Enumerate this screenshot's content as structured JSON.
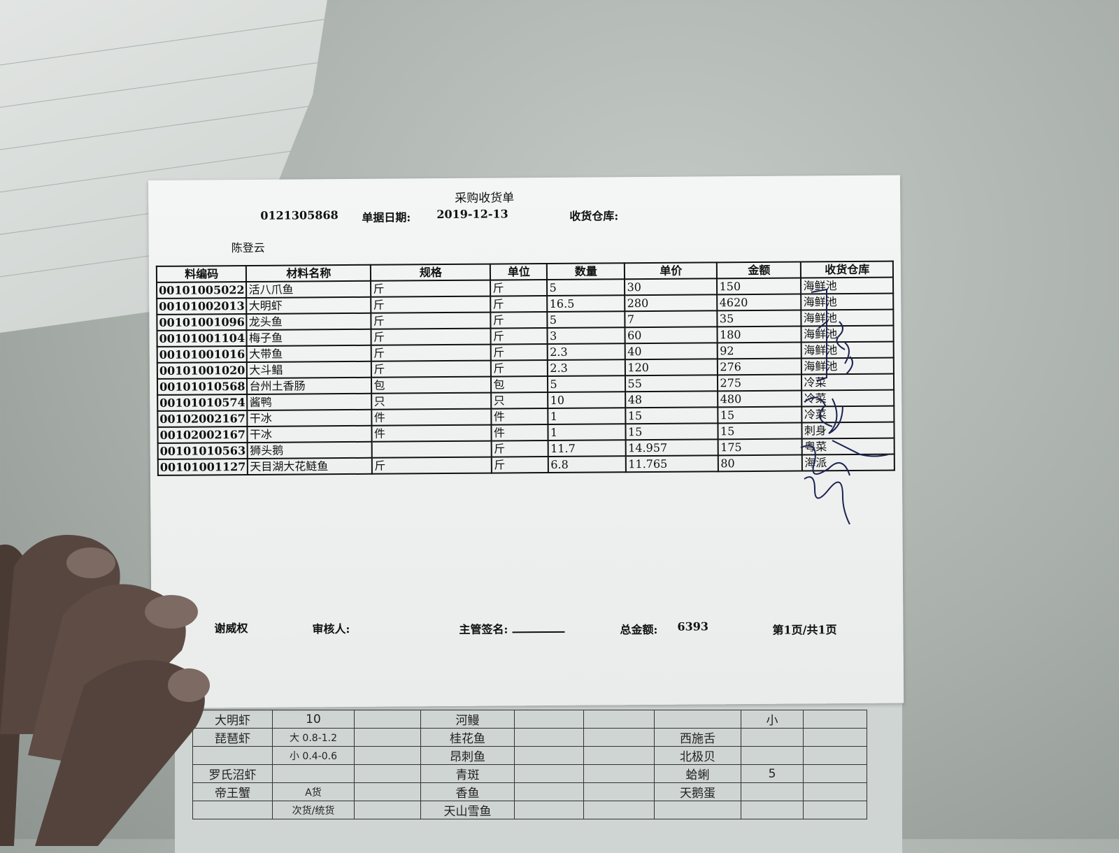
{
  "receipt": {
    "title": "采购收货单",
    "doc_no_partial": "0121305868",
    "date_label": "单据日期:",
    "date_value": "2019-12-13",
    "warehouse_label": "收货仓库:",
    "warehouse_value": "",
    "person": "陈登云",
    "columns": [
      "料编码",
      "材料名称",
      "规格",
      "单位",
      "数量",
      "单价",
      "金额",
      "收货仓库"
    ],
    "rows": [
      [
        "00101005022",
        "活八爪鱼",
        "斤",
        "斤",
        "5",
        "30",
        "150",
        "海鲜池"
      ],
      [
        "00101002013",
        "大明虾",
        "斤",
        "斤",
        "16.5",
        "280",
        "4620",
        "海鲜池"
      ],
      [
        "00101001096",
        "龙头鱼",
        "斤",
        "斤",
        "5",
        "7",
        "35",
        "海鲜池"
      ],
      [
        "00101001104",
        "梅子鱼",
        "斤",
        "斤",
        "3",
        "60",
        "180",
        "海鲜池"
      ],
      [
        "00101001016",
        "大带鱼",
        "斤",
        "斤",
        "2.3",
        "40",
        "92",
        "海鲜池"
      ],
      [
        "00101001020",
        "大斗鲳",
        "斤",
        "斤",
        "2.3",
        "120",
        "276",
        "海鲜池"
      ],
      [
        "00101010568",
        "台州土香肠",
        "包",
        "包",
        "5",
        "55",
        "275",
        "冷菜"
      ],
      [
        "00101010574",
        "酱鸭",
        "只",
        "只",
        "10",
        "48",
        "480",
        "冷菜"
      ],
      [
        "00102002167",
        "干冰",
        "件",
        "件",
        "1",
        "15",
        "15",
        "冷菜"
      ],
      [
        "00102002167",
        "干冰",
        "件",
        "件",
        "1",
        "15",
        "15",
        "刺身"
      ],
      [
        "00101010563",
        "狮头鹅",
        "",
        "斤",
        "11.7",
        "14.957",
        "175",
        "粤菜"
      ],
      [
        "00101001127",
        "天目湖大花鲢鱼",
        "斤",
        "斤",
        "6.8",
        "11.765",
        "80",
        "海派"
      ]
    ],
    "footer": {
      "maker": "谢威权",
      "auditor_label": "审核人:",
      "supervisor_label": "主管签名:",
      "total_label": "总金额:",
      "total_value": "6393",
      "page": "第1页/共1页"
    }
  },
  "bottom_sheet": {
    "rows": [
      [
        "大明虾",
        "10",
        "",
        "河鳗",
        "",
        "",
        "",
        "小",
        ""
      ],
      [
        "琵琶虾",
        "大 0.8-1.2",
        "",
        "桂花鱼",
        "",
        "",
        "西施舌",
        "",
        ""
      ],
      [
        "",
        "小 0.4-0.6",
        "",
        "昂刺鱼",
        "",
        "",
        "北极贝",
        "",
        ""
      ],
      [
        "罗氏沼虾",
        "",
        "",
        "青斑",
        "",
        "",
        "蛤蜊",
        "5",
        ""
      ],
      [
        "帝王蟹",
        "A货",
        "",
        "香鱼",
        "",
        "",
        "天鹅蛋",
        "",
        ""
      ],
      [
        "",
        "次货/统货",
        "",
        "天山雪鱼",
        "",
        "",
        "",
        "",
        ""
      ]
    ]
  }
}
